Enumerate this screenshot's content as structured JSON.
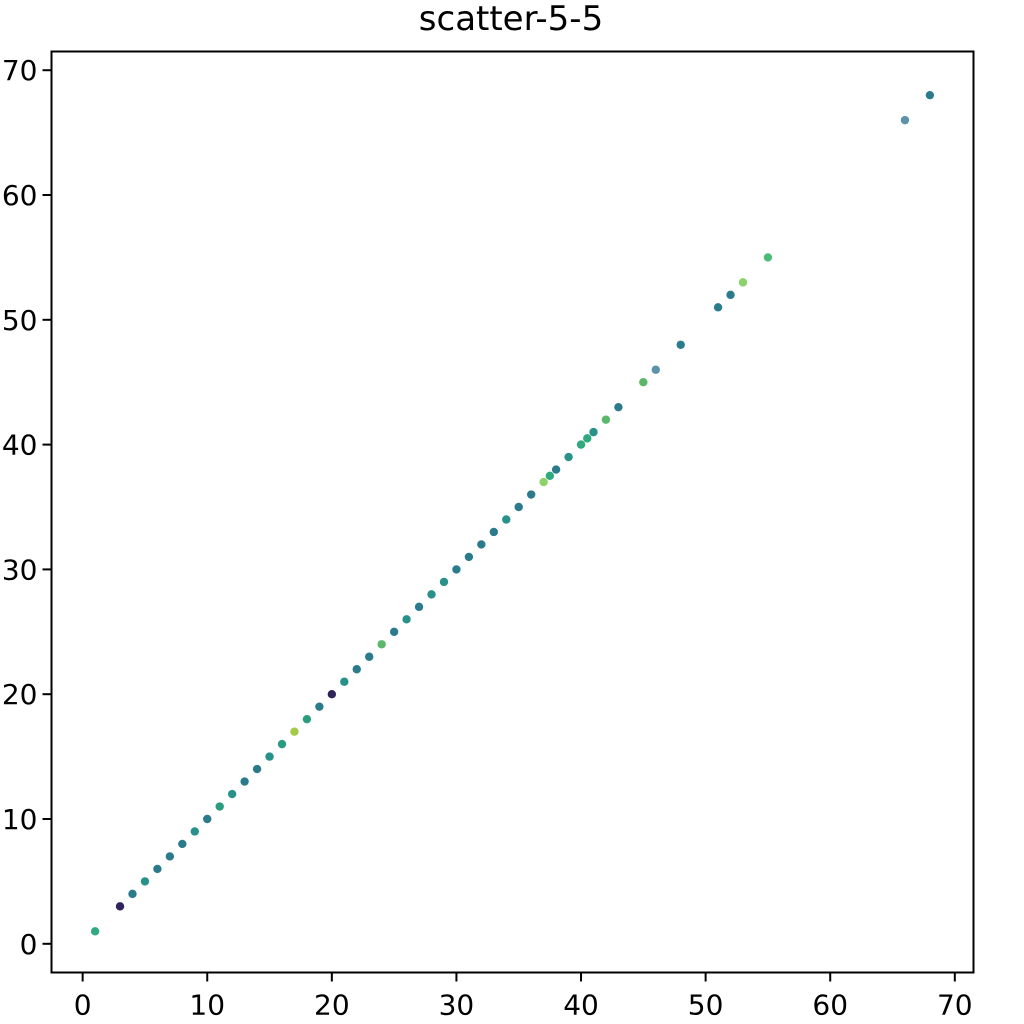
{
  "chart_data": {
    "type": "scatter",
    "title": "scatter-5-5",
    "xlabel": "",
    "ylabel": "",
    "xlim": [
      -2.5,
      71.5
    ],
    "ylim": [
      -2.3,
      71.5
    ],
    "xticks": [
      0,
      10,
      20,
      30,
      40,
      50,
      60,
      70
    ],
    "yticks": [
      0,
      10,
      20,
      30,
      40,
      50,
      60,
      70
    ],
    "xtick_labels": [
      "0",
      "10",
      "20",
      "30",
      "40",
      "50",
      "60",
      "70"
    ],
    "ytick_labels": [
      "0",
      "10",
      "20",
      "30",
      "40",
      "50",
      "60",
      "70"
    ],
    "grid": false,
    "legend": false,
    "points": [
      {
        "x": 1,
        "y": 1,
        "color": "#2eaa7e"
      },
      {
        "x": 3,
        "y": 3,
        "color": "#31245a"
      },
      {
        "x": 4,
        "y": 4,
        "color": "#2b7b8c"
      },
      {
        "x": 5,
        "y": 5,
        "color": "#27918a"
      },
      {
        "x": 6,
        "y": 6,
        "color": "#2b7b8c"
      },
      {
        "x": 7,
        "y": 7,
        "color": "#2b7b8c"
      },
      {
        "x": 8,
        "y": 8,
        "color": "#2b7b8c"
      },
      {
        "x": 9,
        "y": 9,
        "color": "#27918a"
      },
      {
        "x": 10,
        "y": 10,
        "color": "#2b7b8c"
      },
      {
        "x": 11,
        "y": 11,
        "color": "#2a9d80"
      },
      {
        "x": 12,
        "y": 12,
        "color": "#27918a"
      },
      {
        "x": 13,
        "y": 13,
        "color": "#2b7b8c"
      },
      {
        "x": 14,
        "y": 14,
        "color": "#2b7b8c"
      },
      {
        "x": 15,
        "y": 15,
        "color": "#27918a"
      },
      {
        "x": 16,
        "y": 16,
        "color": "#2a9d80"
      },
      {
        "x": 17,
        "y": 17,
        "color": "#a6c94a"
      },
      {
        "x": 18,
        "y": 18,
        "color": "#2a9d80"
      },
      {
        "x": 19,
        "y": 19,
        "color": "#2b7b8c"
      },
      {
        "x": 20,
        "y": 20,
        "color": "#31245a"
      },
      {
        "x": 21,
        "y": 21,
        "color": "#27918a"
      },
      {
        "x": 22,
        "y": 22,
        "color": "#2b7b8c"
      },
      {
        "x": 23,
        "y": 23,
        "color": "#2b7b8c"
      },
      {
        "x": 24,
        "y": 24,
        "color": "#5bb86a"
      },
      {
        "x": 25,
        "y": 25,
        "color": "#2b7b8c"
      },
      {
        "x": 26,
        "y": 26,
        "color": "#27918a"
      },
      {
        "x": 27,
        "y": 27,
        "color": "#2b7b8c"
      },
      {
        "x": 28,
        "y": 28,
        "color": "#27918a"
      },
      {
        "x": 29,
        "y": 29,
        "color": "#27918a"
      },
      {
        "x": 30,
        "y": 30,
        "color": "#2b7b8c"
      },
      {
        "x": 31,
        "y": 31,
        "color": "#2b7b8c"
      },
      {
        "x": 32,
        "y": 32,
        "color": "#2b7b8c"
      },
      {
        "x": 33,
        "y": 33,
        "color": "#2b7b8c"
      },
      {
        "x": 34,
        "y": 34,
        "color": "#27918a"
      },
      {
        "x": 35,
        "y": 35,
        "color": "#2b7b8c"
      },
      {
        "x": 36,
        "y": 36,
        "color": "#2b7b8c"
      },
      {
        "x": 37,
        "y": 37,
        "color": "#8bd26a"
      },
      {
        "x": 37.5,
        "y": 37.5,
        "color": "#2eaa7e"
      },
      {
        "x": 38,
        "y": 38,
        "color": "#2b7b8c"
      },
      {
        "x": 39,
        "y": 39,
        "color": "#27918a"
      },
      {
        "x": 40,
        "y": 40,
        "color": "#2eaa7e"
      },
      {
        "x": 40.5,
        "y": 40.5,
        "color": "#2eaa7e"
      },
      {
        "x": 41,
        "y": 41,
        "color": "#27918a"
      },
      {
        "x": 42,
        "y": 42,
        "color": "#5bb86a"
      },
      {
        "x": 43,
        "y": 43,
        "color": "#2b7b8c"
      },
      {
        "x": 45,
        "y": 45,
        "color": "#5bb86a"
      },
      {
        "x": 46,
        "y": 46,
        "color": "#5b93ad"
      },
      {
        "x": 48,
        "y": 48,
        "color": "#2b7b8c"
      },
      {
        "x": 51,
        "y": 51,
        "color": "#2b7b8c"
      },
      {
        "x": 52,
        "y": 52,
        "color": "#2b7b8c"
      },
      {
        "x": 53,
        "y": 53,
        "color": "#8bd26a"
      },
      {
        "x": 55,
        "y": 55,
        "color": "#4cbb7a"
      },
      {
        "x": 66,
        "y": 66,
        "color": "#5b93ad"
      },
      {
        "x": 68,
        "y": 68,
        "color": "#2b7b8c"
      }
    ]
  }
}
